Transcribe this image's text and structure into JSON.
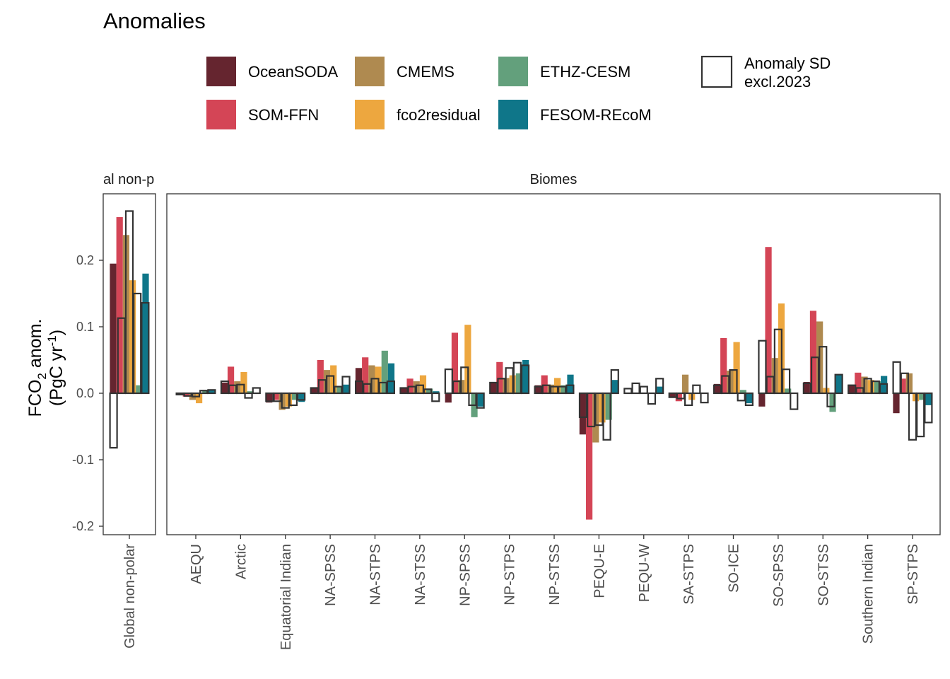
{
  "chart_data": {
    "type": "bar",
    "title": "Anomalies",
    "ylabel": "FCO2 anom. (PgC yr-1)",
    "ylabel_parts": {
      "line1_main": "FCO",
      "line1_sub": "2",
      "line1_rest": " anom.",
      "line2_main": "(PgC yr",
      "line2_sup": "-1",
      "line2_end": ")"
    },
    "ylim": [
      -0.2,
      0.29
    ],
    "yticks": [
      -0.2,
      -0.1,
      0.0,
      0.1,
      0.2
    ],
    "ytick_labels": [
      "-0.2",
      "-0.1",
      "0.0",
      "0.1",
      "0.2"
    ],
    "legend_position": "top",
    "series_names": [
      "OceanSODA",
      "SOM-FFN",
      "CMEMS",
      "fco2residual",
      "ETHZ-CESM",
      "FESOM-REcoM"
    ],
    "series_colors": [
      "#65252f",
      "#d44556",
      "#af8a50",
      "#eda73f",
      "#63a07c",
      "#0f7689"
    ],
    "sd_label_line1": "Anomaly SD",
    "sd_label_line2": "excl.2023",
    "panels": [
      {
        "strip": "al non-p",
        "categories": [
          "Global non-polar"
        ],
        "values": [
          [
            0.195,
            0.265,
            0.238,
            0.17,
            0.012,
            0.18
          ]
        ],
        "sd": [
          [
            -0.082,
            0.113,
            0.274,
            0.15,
            0.136
          ]
        ]
      },
      {
        "strip": "Biomes",
        "categories": [
          "AEQU",
          "Arctic",
          "Equatorial Indian",
          "NA-SPSS",
          "NA-STPS",
          "NA-STSS",
          "NP-SPSS",
          "NP-STPS",
          "NP-STSS",
          "PEQU-E",
          "PEQU-W",
          "SA-STPS",
          "SO-ICE",
          "SO-SPSS",
          "SO-STSS",
          "Southern Indian",
          "SP-STPS"
        ],
        "values": [
          [
            -0.003,
            -0.005,
            -0.01,
            -0.015,
            0.005,
            0.005
          ],
          [
            0.016,
            0.04,
            0.018,
            0.032,
            0.003,
            0.001
          ],
          [
            -0.014,
            -0.01,
            -0.025,
            -0.02,
            -0.01,
            -0.013
          ],
          [
            0.008,
            0.05,
            0.035,
            0.042,
            0.01,
            0.013
          ],
          [
            0.038,
            0.054,
            0.042,
            0.04,
            0.064,
            0.045
          ],
          [
            0.009,
            0.022,
            0.018,
            0.027,
            0.007,
            0.003
          ],
          [
            -0.014,
            0.091,
            0.02,
            0.103,
            -0.036,
            -0.02
          ],
          [
            0.015,
            0.047,
            0.023,
            0.027,
            0.03,
            0.05
          ],
          [
            0.012,
            0.027,
            0.013,
            0.023,
            0.012,
            0.028
          ],
          [
            -0.062,
            -0.19,
            -0.074,
            -0.044,
            -0.04,
            0.02
          ],
          [
            0.0,
            0.0,
            0.0,
            0.0,
            0.0,
            0.01
          ],
          [
            -0.007,
            -0.012,
            0.028,
            -0.01,
            0.0,
            0.0
          ],
          [
            0.014,
            0.083,
            0.034,
            0.077,
            0.005,
            -0.015
          ],
          [
            -0.02,
            0.22,
            0.053,
            0.135,
            0.007,
            0.0
          ],
          [
            0.017,
            0.124,
            0.108,
            0.008,
            -0.028,
            0.028
          ],
          [
            0.013,
            0.031,
            0.025,
            0.02,
            0.018,
            0.026
          ],
          [
            -0.03,
            0.022,
            0.03,
            -0.012,
            -0.01,
            -0.018
          ]
        ],
        "sd": [
          [
            -0.002,
            -0.004,
            -0.005,
            0.004,
            0.005
          ],
          [
            0.018,
            0.012,
            0.013,
            -0.007,
            0.008
          ],
          [
            -0.012,
            -0.012,
            -0.022,
            -0.018,
            -0.01
          ],
          [
            0.008,
            0.02,
            0.026,
            0.01,
            0.025
          ],
          [
            0.018,
            0.014,
            0.022,
            0.016,
            0.018
          ],
          [
            0.008,
            0.01,
            0.012,
            0.006,
            -0.012
          ],
          [
            0.036,
            0.018,
            0.039,
            -0.018,
            -0.022
          ],
          [
            0.016,
            0.022,
            0.038,
            0.046,
            0.042
          ],
          [
            0.01,
            0.012,
            0.01,
            0.01,
            0.012
          ],
          [
            -0.036,
            -0.05,
            -0.048,
            -0.07,
            0.035
          ],
          [
            0.007,
            0.015,
            0.01,
            -0.016,
            0.022
          ],
          [
            -0.006,
            -0.008,
            -0.018,
            0.012,
            -0.014
          ],
          [
            0.012,
            0.026,
            0.035,
            -0.011,
            -0.018
          ],
          [
            0.079,
            0.025,
            0.096,
            0.036,
            -0.024
          ],
          [
            0.015,
            0.054,
            0.07,
            -0.02,
            0.028
          ],
          [
            0.012,
            0.008,
            0.022,
            0.018,
            0.014
          ],
          [
            0.047,
            0.03,
            -0.07,
            -0.065,
            -0.044
          ]
        ]
      }
    ]
  }
}
